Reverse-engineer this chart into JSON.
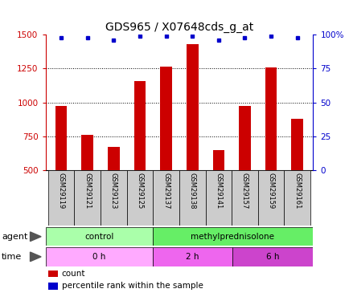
{
  "title": "GDS965 / X07648cds_g_at",
  "samples": [
    "GSM29119",
    "GSM29121",
    "GSM29123",
    "GSM29125",
    "GSM29137",
    "GSM29138",
    "GSM29141",
    "GSM29157",
    "GSM29159",
    "GSM29161"
  ],
  "counts": [
    975,
    762,
    672,
    1155,
    1265,
    1430,
    645,
    975,
    1260,
    880
  ],
  "percentile_ranks": [
    98,
    98,
    96,
    99,
    99,
    99,
    96,
    98,
    99,
    98
  ],
  "ylim_left": [
    500,
    1500
  ],
  "ylim_right": [
    0,
    100
  ],
  "yticks_left": [
    500,
    750,
    1000,
    1250,
    1500
  ],
  "yticks_right": [
    0,
    25,
    50,
    75,
    100
  ],
  "bar_color": "#cc0000",
  "dot_color": "#0000cc",
  "agent_groups": [
    {
      "label": "control",
      "start": 0,
      "end": 4,
      "color": "#aaffaa"
    },
    {
      "label": "methylprednisolone",
      "start": 4,
      "end": 10,
      "color": "#66ee66"
    }
  ],
  "time_groups": [
    {
      "label": "0 h",
      "start": 0,
      "end": 4,
      "color": "#ffaaff"
    },
    {
      "label": "2 h",
      "start": 4,
      "end": 7,
      "color": "#ee66ee"
    },
    {
      "label": "6 h",
      "start": 7,
      "end": 10,
      "color": "#cc44cc"
    }
  ],
  "legend_items": [
    {
      "color": "#cc0000",
      "label": "count"
    },
    {
      "color": "#0000cc",
      "label": "percentile rank within the sample"
    }
  ],
  "agent_row_label": "agent",
  "time_row_label": "time",
  "title_fontsize": 10,
  "tick_fontsize": 7.5,
  "row_label_fontsize": 8,
  "sample_fontsize": 6.0,
  "bar_width": 0.45,
  "sample_cell_color": "#cccccc",
  "fig_bg": "#ffffff"
}
